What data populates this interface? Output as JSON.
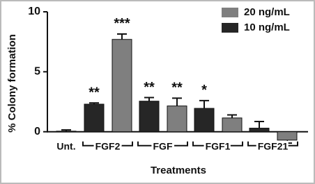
{
  "chart_data": {
    "type": "bar",
    "x_label": "Treatments",
    "y_label": "% Colony formation",
    "categories": [
      "Unt.",
      "FGF2",
      "FGF",
      "FGF1",
      "FGF21"
    ],
    "series": [
      {
        "name": "20 ng/mL",
        "color": "#7f7f7f",
        "values": [
          null,
          7.7,
          2.15,
          1.15,
          -0.7
        ],
        "errors": [
          null,
          0.45,
          0.65,
          0.25,
          0.25
        ],
        "significance": [
          null,
          "***",
          "**",
          null,
          null
        ]
      },
      {
        "name": "10 ng/mL",
        "color": "#262626",
        "values": [
          0.05,
          2.3,
          2.55,
          1.95,
          0.3
        ],
        "errors": [
          0.1,
          0.1,
          0.3,
          0.65,
          0.55
        ],
        "significance": [
          null,
          "**",
          "**",
          "*",
          null
        ]
      }
    ],
    "ylim": [
      -1,
      10
    ],
    "yticks": [
      0,
      5,
      10
    ],
    "legend": "upper right"
  }
}
